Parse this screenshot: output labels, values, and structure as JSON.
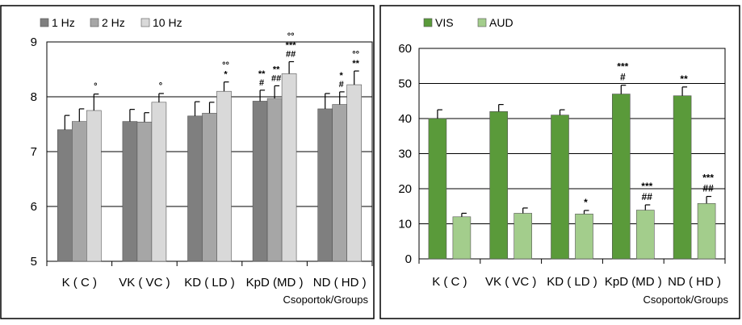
{
  "chart_data": [
    {
      "type": "bar",
      "categories": [
        "K ( C )",
        "VK ( VC )",
        "KD ( LD )",
        "KpD (MD )",
        "ND ( HD )"
      ],
      "xlabel": "Csoportok/Groups",
      "ylabel": "",
      "ylim": [
        5,
        9
      ],
      "yticks": [
        5,
        6,
        7,
        8,
        9
      ],
      "grid": true,
      "legend": "top-left",
      "series": [
        {
          "name": "1 Hz",
          "color": "#7f7f7f",
          "values": [
            7.4,
            7.55,
            7.65,
            7.92,
            7.78
          ],
          "errors": [
            0.26,
            0.22,
            0.26,
            0.2,
            0.28
          ]
        },
        {
          "name": "2 Hz",
          "color": "#a6a6a6",
          "values": [
            7.55,
            7.54,
            7.7,
            7.97,
            7.86
          ],
          "errors": [
            0.23,
            0.17,
            0.2,
            0.23,
            0.23
          ]
        },
        {
          "name": "10 Hz",
          "color": "#d9d9d9",
          "values": [
            7.75,
            7.9,
            8.1,
            8.42,
            8.22
          ],
          "errors": [
            0.3,
            0.16,
            0.17,
            0.22,
            0.25
          ]
        }
      ],
      "annotations": [
        {
          "category": 0,
          "series": 2,
          "lines": [
            "°"
          ]
        },
        {
          "category": 1,
          "series": 2,
          "lines": [
            "°"
          ]
        },
        {
          "category": 2,
          "series": 2,
          "lines": [
            "°°",
            "*"
          ]
        },
        {
          "category": 3,
          "series": 0,
          "lines": [
            "**",
            "#"
          ]
        },
        {
          "category": 3,
          "series": 1,
          "lines": [
            "**",
            "##"
          ]
        },
        {
          "category": 3,
          "series": 2,
          "lines": [
            "°°",
            "***",
            "##"
          ]
        },
        {
          "category": 4,
          "series": 1,
          "lines": [
            "*",
            "#"
          ]
        },
        {
          "category": 4,
          "series": 2,
          "lines": [
            "°°",
            "**"
          ]
        }
      ]
    },
    {
      "type": "bar",
      "categories": [
        "K ( C )",
        "VK ( VC )",
        "KD ( LD )",
        "KpD (MD )",
        "ND ( HD )"
      ],
      "xlabel": "Csoportok/Groups",
      "ylabel": "",
      "ylim": [
        0,
        60
      ],
      "yticks": [
        0,
        10,
        20,
        30,
        40,
        50,
        60
      ],
      "grid": true,
      "legend": "top-left",
      "series": [
        {
          "name": "VIS",
          "color": "#5a9a3a",
          "values": [
            40,
            42,
            41,
            47,
            46.5
          ],
          "errors": [
            2.5,
            2,
            1.5,
            2.5,
            2.5
          ]
        },
        {
          "name": "AUD",
          "color": "#a3cd8c",
          "values": [
            12,
            13,
            12.8,
            13.9,
            15.8
          ],
          "errors": [
            1,
            1.5,
            1,
            1.5,
            2
          ]
        }
      ],
      "annotations": [
        {
          "category": 2,
          "series": 1,
          "lines": [
            "*"
          ]
        },
        {
          "category": 3,
          "series": 0,
          "lines": [
            "***",
            "#"
          ]
        },
        {
          "category": 3,
          "series": 1,
          "lines": [
            "***",
            "##"
          ]
        },
        {
          "category": 4,
          "series": 0,
          "lines": [
            "**"
          ]
        },
        {
          "category": 4,
          "series": 1,
          "lines": [
            "***",
            "##"
          ]
        }
      ]
    }
  ]
}
